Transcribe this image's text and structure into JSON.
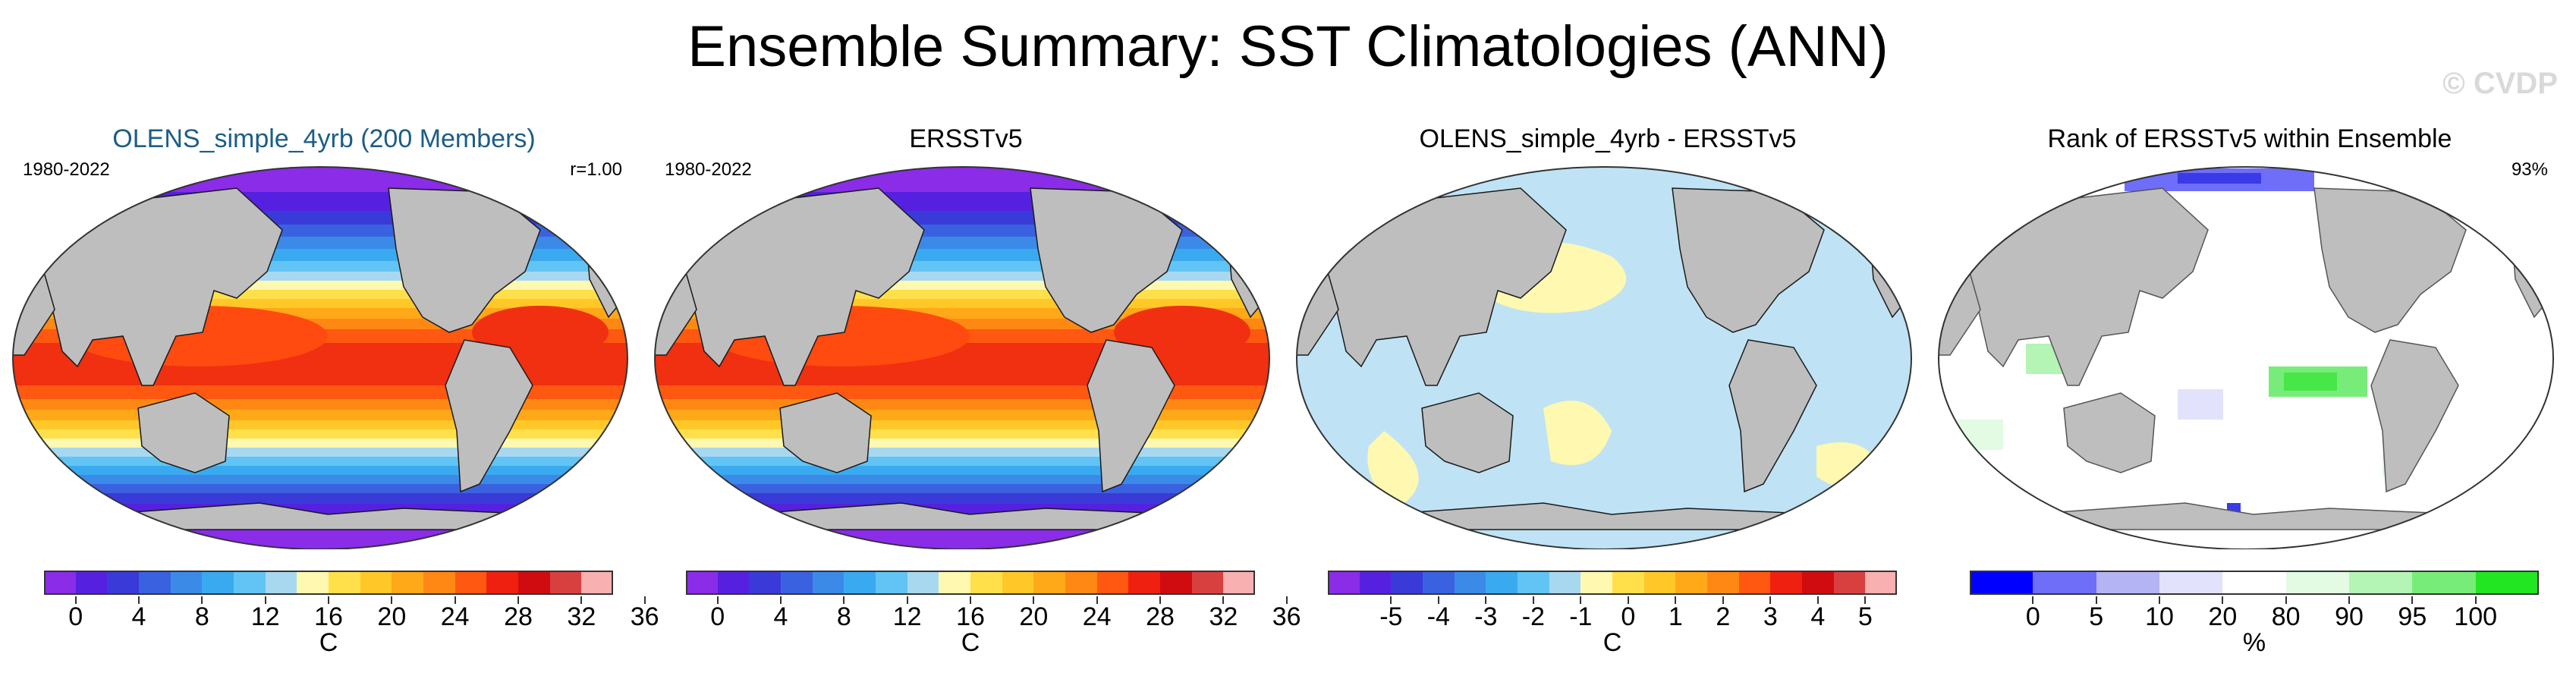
{
  "title": "Ensemble Summary: SST Climatologies (ANN)",
  "watermark": "© CVDP",
  "panels": [
    {
      "title": "OLENS_simple_4yrb (200 Members)",
      "left_label": "1980-2022",
      "right_label": "r=1.00",
      "map_type": "sst",
      "colorbar": {
        "colors": [
          "#8a2ce8",
          "#5620e0",
          "#3a3ad8",
          "#3a62e0",
          "#3c8ae8",
          "#3aaaf0",
          "#62c4f4",
          "#a8d8f0",
          "#fff8b0",
          "#ffe04a",
          "#ffc828",
          "#ffa818",
          "#ff8814",
          "#ff5810",
          "#f02010",
          "#d00c10",
          "#d84040",
          "#f8b0b0"
        ],
        "labels": [
          "0",
          "4",
          "8",
          "12",
          "16",
          "20",
          "24",
          "28",
          "32",
          "36"
        ],
        "unit": "C"
      }
    },
    {
      "title": "ERSSTv5",
      "left_label": "1980-2022",
      "right_label": "",
      "map_type": "sst",
      "colorbar": {
        "colors": [
          "#8a2ce8",
          "#5620e0",
          "#3a3ad8",
          "#3a62e0",
          "#3c8ae8",
          "#3aaaf0",
          "#62c4f4",
          "#a8d8f0",
          "#fff8b0",
          "#ffe04a",
          "#ffc828",
          "#ffa818",
          "#ff8814",
          "#ff5810",
          "#f02010",
          "#d00c10",
          "#d84040",
          "#f8b0b0"
        ],
        "labels": [
          "0",
          "4",
          "8",
          "12",
          "16",
          "20",
          "24",
          "28",
          "32",
          "36"
        ],
        "unit": "C"
      }
    },
    {
      "title": "OLENS_simple_4yrb - ERSSTv5",
      "left_label": "",
      "right_label": "",
      "map_type": "diff",
      "colorbar": {
        "colors": [
          "#8a2ce8",
          "#5620e0",
          "#3a3ad8",
          "#3a62e0",
          "#3c8ae8",
          "#3aaaf0",
          "#62c4f4",
          "#a8d8f0",
          "#fff8b0",
          "#ffe04a",
          "#ffc828",
          "#ffa818",
          "#ff8814",
          "#ff5810",
          "#f02010",
          "#d00c10",
          "#d84040",
          "#f8b0b0"
        ],
        "labels": [
          "-5",
          "-4",
          "-3",
          "-2",
          "-1",
          "0",
          "1",
          "2",
          "3",
          "4",
          "5"
        ],
        "unit": "C"
      }
    },
    {
      "title": "Rank of ERSSTv5 within Ensemble",
      "left_label": "",
      "right_label": "93%",
      "map_type": "rank",
      "colorbar": {
        "colors": [
          "#0000ff",
          "#6e6ef8",
          "#b4b4f4",
          "#e2e2fc",
          "#ffffff",
          "#e2fbe2",
          "#b4f4b4",
          "#78ec78",
          "#22e622"
        ],
        "labels": [
          "0",
          "5",
          "10",
          "20",
          "80",
          "90",
          "95",
          "100"
        ],
        "unit": "%"
      }
    }
  ]
}
